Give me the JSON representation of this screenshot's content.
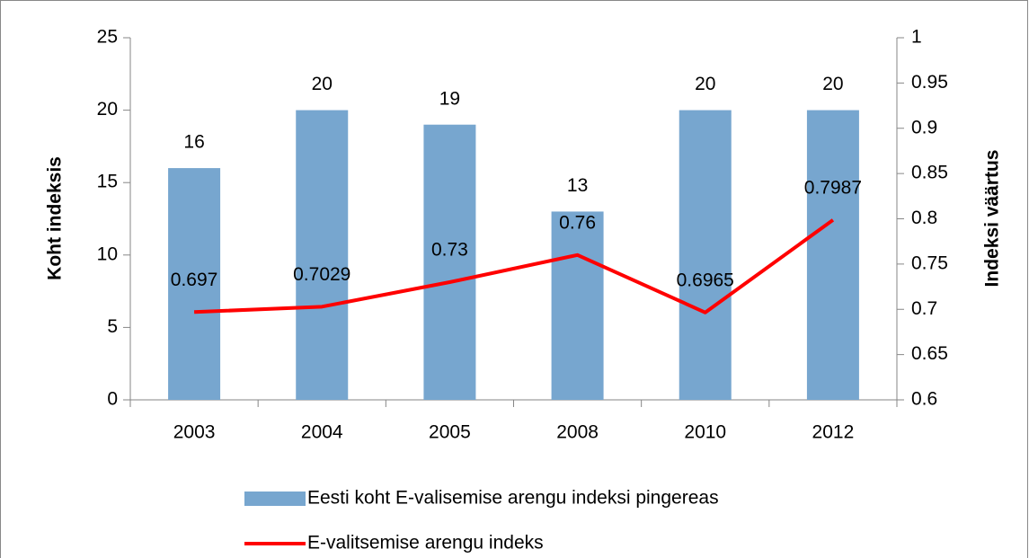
{
  "chart_data": {
    "type": "bar-line",
    "categories": [
      "2003",
      "2004",
      "2005",
      "2008",
      "2010",
      "2012"
    ],
    "series": [
      {
        "name": "Eesti koht E-valisemise arengu indeksi pingereas",
        "color": "#77a6cf",
        "type": "bar",
        "values": [
          16,
          20,
          19,
          13,
          20,
          20
        ]
      },
      {
        "name": "E-valitsemise arengu indeks",
        "color": "#ff0000",
        "type": "line",
        "axis": "y2",
        "values": [
          0.697,
          0.7029,
          0.73,
          0.76,
          0.6965,
          0.7987
        ]
      }
    ],
    "ylabel": "Koht indeksis",
    "y2label": "Indeksi väärtus",
    "ylim": [
      0,
      25
    ],
    "yticks": [
      0,
      5,
      10,
      15,
      20,
      25
    ],
    "y2lim": [
      0.6,
      1
    ],
    "y2ticks": [
      0.6,
      0.65,
      0.7,
      0.75,
      0.8,
      0.85,
      0.9,
      0.95,
      1
    ],
    "legend": "bottom"
  }
}
